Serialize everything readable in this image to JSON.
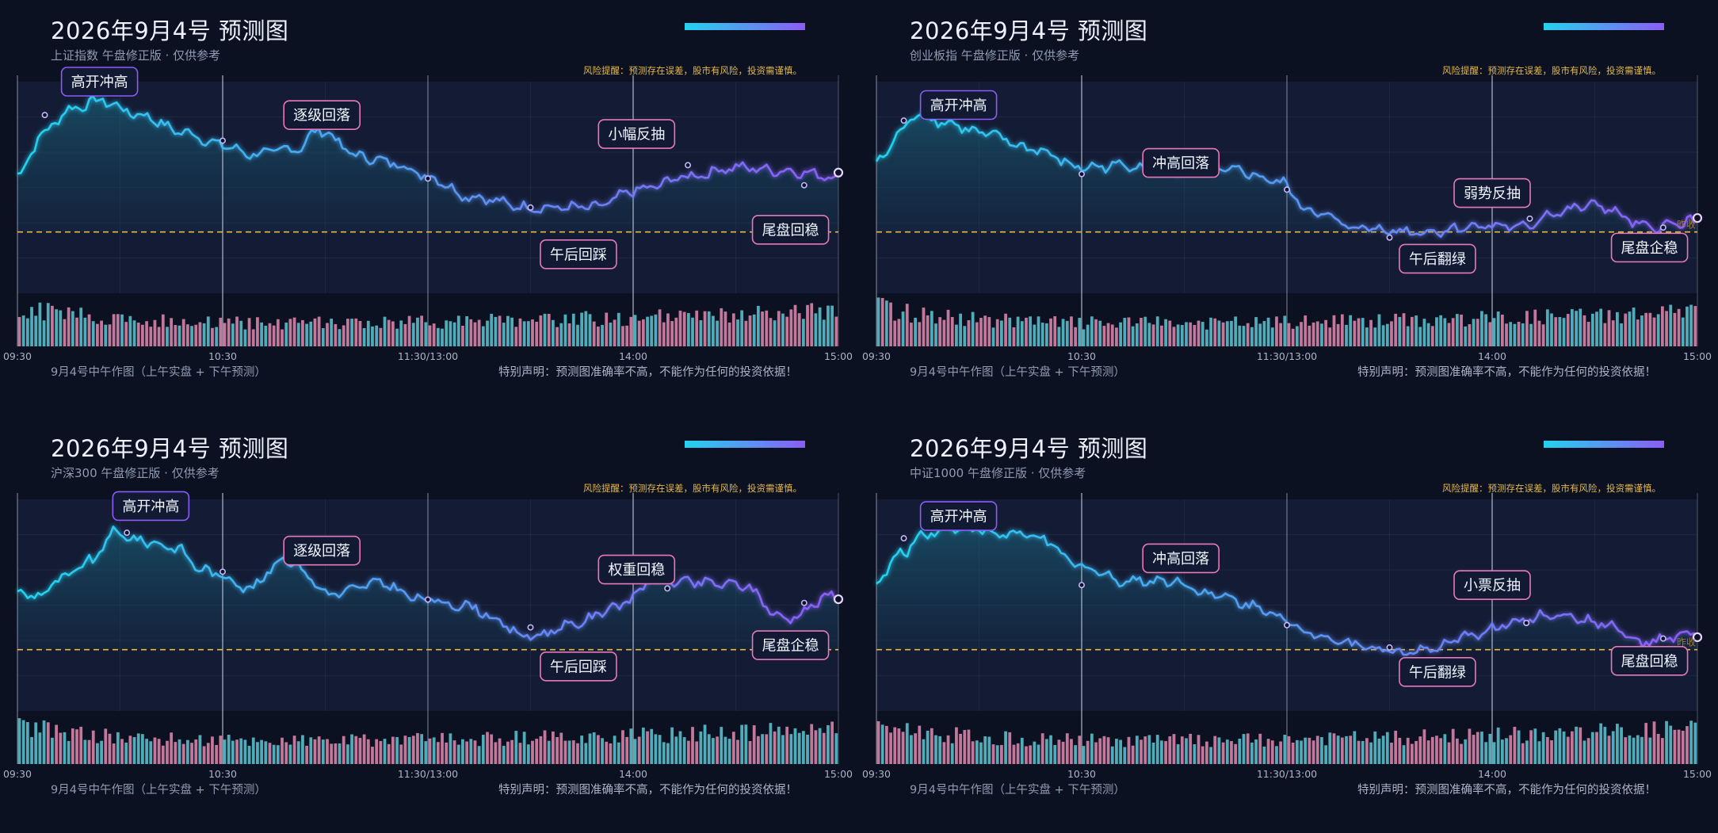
{
  "colors": {
    "background": "#0b1120",
    "plot_bg": "#141c35",
    "line_start": "#22d3ee",
    "line_end": "#8b5cf6",
    "baseline": "#e6b84a",
    "volume_up": "#5ec8d6",
    "volume_down": "#e48ab0",
    "annotation_up_border": "#8b5cf6",
    "annotation_down_border": "#e879b9",
    "risk_text": "#e6b84a"
  },
  "panels": [
    {
      "title": "2026年9月4号 预测图",
      "subtitle": "上证指数 午盘修正版 · 仅供参考",
      "risk_note": "风险提醒：预测存在误差，股市有风险，投资需谨慎。",
      "caption": "9月4号中午作图（上午实盘 + 下午预测）",
      "disclaimer": "特别声明：预测图准确率不高，不能作为任何的投资依据！",
      "end_label": ""
    },
    {
      "title": "2026年9月4号 预测图",
      "subtitle": "创业板指 午盘修正版 · 仅供参考",
      "risk_note": "风险提醒：预测存在误差，股市有风险，投资需谨慎。",
      "caption": "9月4号中午作图（上午实盘 + 下午预测）",
      "disclaimer": "特别声明：预测图准确率不高，不能作为任何的投资依据！",
      "end_label": "昨收"
    },
    {
      "title": "2026年9月4号 预测图",
      "subtitle": "沪深300 午盘修正版 · 仅供参考",
      "risk_note": "风险提醒：预测存在误差，股市有风险，投资需谨慎。",
      "caption": "9月4号中午作图（上午实盘 + 下午预测）",
      "disclaimer": "特别声明：预测图准确率不高，不能作为任何的投资依据！",
      "end_label": ""
    },
    {
      "title": "2026年9月4号 预测图",
      "subtitle": "中证1000 午盘修正版 · 仅供参考",
      "risk_note": "风险提醒：预测存在误差，股市有风险，投资需谨慎。",
      "caption": "9月4号中午作图（上午实盘 + 下午预测）",
      "disclaimer": "特别声明：预测图准确率不高，不能作为任何的投资依据！",
      "end_label": "昨收"
    }
  ],
  "chart_data": [
    {
      "type": "line",
      "x_ticks": [
        "09:30",
        "10:30",
        "11:30/13:00",
        "14:00",
        "15:00"
      ],
      "x_range": [
        0,
        240
      ],
      "y_range": [
        -0.55,
        1.35
      ],
      "baseline": 0,
      "y_ticks_visible": false,
      "keypoints": [
        [
          0,
          0.52
        ],
        [
          8,
          0.9
        ],
        [
          15,
          1.1
        ],
        [
          24,
          1.18
        ],
        [
          36,
          1.05
        ],
        [
          48,
          0.9
        ],
        [
          60,
          0.78
        ],
        [
          68,
          0.7
        ],
        [
          82,
          0.75
        ],
        [
          88,
          0.92
        ],
        [
          100,
          0.68
        ],
        [
          110,
          0.62
        ],
        [
          120,
          0.5
        ],
        [
          132,
          0.32
        ],
        [
          150,
          0.22
        ],
        [
          168,
          0.22
        ],
        [
          182,
          0.38
        ],
        [
          196,
          0.5
        ],
        [
          210,
          0.58
        ],
        [
          224,
          0.55
        ],
        [
          240,
          0.5
        ]
      ],
      "markers": [
        [
          8,
          1.05
        ],
        [
          60,
          0.82
        ],
        [
          120,
          0.48
        ],
        [
          150,
          0.22
        ],
        [
          196,
          0.6
        ],
        [
          230,
          0.42
        ]
      ],
      "annotations": [
        {
          "text": "高开冲高",
          "x": 24,
          "y": 1.35,
          "kind": "up"
        },
        {
          "text": "逐级回落",
          "x": 89,
          "y": 1.05,
          "kind": "down"
        },
        {
          "text": "小幅反抽",
          "x": 181,
          "y": 0.88,
          "kind": "down"
        },
        {
          "text": "午后回踩",
          "x": 164,
          "y": -0.2,
          "kind": "down"
        },
        {
          "text": "尾盘回稳",
          "x": 226,
          "y": 0.02,
          "kind": "down"
        }
      ],
      "volume_seed": 1
    },
    {
      "type": "line",
      "x_ticks": [
        "09:30",
        "10:30",
        "11:30/13:00",
        "14:00",
        "15:00"
      ],
      "x_range": [
        0,
        240
      ],
      "y_range": [
        -0.55,
        1.35
      ],
      "baseline": 0,
      "y_ticks_visible": false,
      "keypoints": [
        [
          0,
          0.62
        ],
        [
          8,
          0.92
        ],
        [
          12,
          1.08
        ],
        [
          20,
          0.98
        ],
        [
          32,
          0.88
        ],
        [
          45,
          0.75
        ],
        [
          60,
          0.58
        ],
        [
          74,
          0.6
        ],
        [
          90,
          0.55
        ],
        [
          105,
          0.55
        ],
        [
          118,
          0.45
        ],
        [
          126,
          0.2
        ],
        [
          140,
          0.04
        ],
        [
          160,
          0.0
        ],
        [
          178,
          0.06
        ],
        [
          190,
          0.04
        ],
        [
          196,
          0.16
        ],
        [
          210,
          0.24
        ],
        [
          226,
          0.04
        ],
        [
          240,
          0.1
        ]
      ],
      "markers": [
        [
          8,
          1.0
        ],
        [
          60,
          0.52
        ],
        [
          120,
          0.38
        ],
        [
          150,
          -0.05
        ],
        [
          191,
          0.12
        ],
        [
          230,
          0.04
        ]
      ],
      "annotations": [
        {
          "text": "高开冲高",
          "x": 24,
          "y": 1.14,
          "kind": "up"
        },
        {
          "text": "冲高回落",
          "x": 89,
          "y": 0.62,
          "kind": "down"
        },
        {
          "text": "弱势反抽",
          "x": 180,
          "y": 0.35,
          "kind": "down"
        },
        {
          "text": "午后翻绿",
          "x": 164,
          "y": -0.24,
          "kind": "down"
        },
        {
          "text": "尾盘企稳",
          "x": 226,
          "y": -0.14,
          "kind": "down"
        }
      ],
      "volume_seed": 2
    },
    {
      "type": "line",
      "x_ticks": [
        "09:30",
        "10:30",
        "11:30/13:00",
        "14:00",
        "15:00"
      ],
      "x_range": [
        0,
        240
      ],
      "y_range": [
        -0.55,
        1.35
      ],
      "baseline": 0,
      "y_ticks_visible": false,
      "keypoints": [
        [
          0,
          0.52
        ],
        [
          6,
          0.48
        ],
        [
          12,
          0.62
        ],
        [
          22,
          0.8
        ],
        [
          28,
          1.05
        ],
        [
          36,
          0.98
        ],
        [
          46,
          0.92
        ],
        [
          54,
          0.72
        ],
        [
          60,
          0.66
        ],
        [
          68,
          0.55
        ],
        [
          78,
          0.82
        ],
        [
          92,
          0.5
        ],
        [
          106,
          0.6
        ],
        [
          118,
          0.45
        ],
        [
          130,
          0.4
        ],
        [
          150,
          0.12
        ],
        [
          162,
          0.22
        ],
        [
          176,
          0.4
        ],
        [
          186,
          0.62
        ],
        [
          200,
          0.6
        ],
        [
          212,
          0.58
        ],
        [
          224,
          0.28
        ],
        [
          240,
          0.5
        ]
      ],
      "markers": [
        [
          32,
          1.05
        ],
        [
          60,
          0.7
        ],
        [
          120,
          0.45
        ],
        [
          150,
          0.2
        ],
        [
          190,
          0.55
        ],
        [
          230,
          0.42
        ]
      ],
      "annotations": [
        {
          "text": "高开冲高",
          "x": 39,
          "y": 1.29,
          "kind": "up"
        },
        {
          "text": "逐级回落",
          "x": 89,
          "y": 0.89,
          "kind": "down"
        },
        {
          "text": "权重回稳",
          "x": 181,
          "y": 0.72,
          "kind": "down"
        },
        {
          "text": "午后回踩",
          "x": 164,
          "y": -0.15,
          "kind": "down"
        },
        {
          "text": "尾盘企稳",
          "x": 226,
          "y": 0.04,
          "kind": "down"
        }
      ],
      "volume_seed": 3
    },
    {
      "type": "line",
      "x_ticks": [
        "09:30",
        "10:30",
        "11:30/13:00",
        "14:00",
        "15:00"
      ],
      "x_range": [
        0,
        240
      ],
      "y_range": [
        -0.55,
        1.35
      ],
      "baseline": 0,
      "y_ticks_visible": false,
      "keypoints": [
        [
          0,
          0.62
        ],
        [
          8,
          0.88
        ],
        [
          14,
          1.05
        ],
        [
          24,
          1.1
        ],
        [
          36,
          1.04
        ],
        [
          46,
          1.02
        ],
        [
          60,
          0.75
        ],
        [
          72,
          0.62
        ],
        [
          86,
          0.62
        ],
        [
          100,
          0.48
        ],
        [
          112,
          0.38
        ],
        [
          126,
          0.16
        ],
        [
          140,
          0.05
        ],
        [
          152,
          -0.02
        ],
        [
          162,
          0.0
        ],
        [
          176,
          0.15
        ],
        [
          186,
          0.24
        ],
        [
          198,
          0.32
        ],
        [
          212,
          0.24
        ],
        [
          224,
          0.06
        ],
        [
          240,
          0.14
        ]
      ],
      "markers": [
        [
          8,
          1.0
        ],
        [
          60,
          0.58
        ],
        [
          120,
          0.22
        ],
        [
          150,
          0.02
        ],
        [
          190,
          0.24
        ],
        [
          230,
          0.1
        ]
      ],
      "annotations": [
        {
          "text": "高开冲高",
          "x": 24,
          "y": 1.2,
          "kind": "up"
        },
        {
          "text": "冲高回落",
          "x": 89,
          "y": 0.82,
          "kind": "down"
        },
        {
          "text": "小票反抽",
          "x": 180,
          "y": 0.58,
          "kind": "down"
        },
        {
          "text": "午后翻绿",
          "x": 164,
          "y": -0.2,
          "kind": "down"
        },
        {
          "text": "尾盘回稳",
          "x": 226,
          "y": -0.1,
          "kind": "down"
        }
      ],
      "volume_seed": 4
    }
  ]
}
